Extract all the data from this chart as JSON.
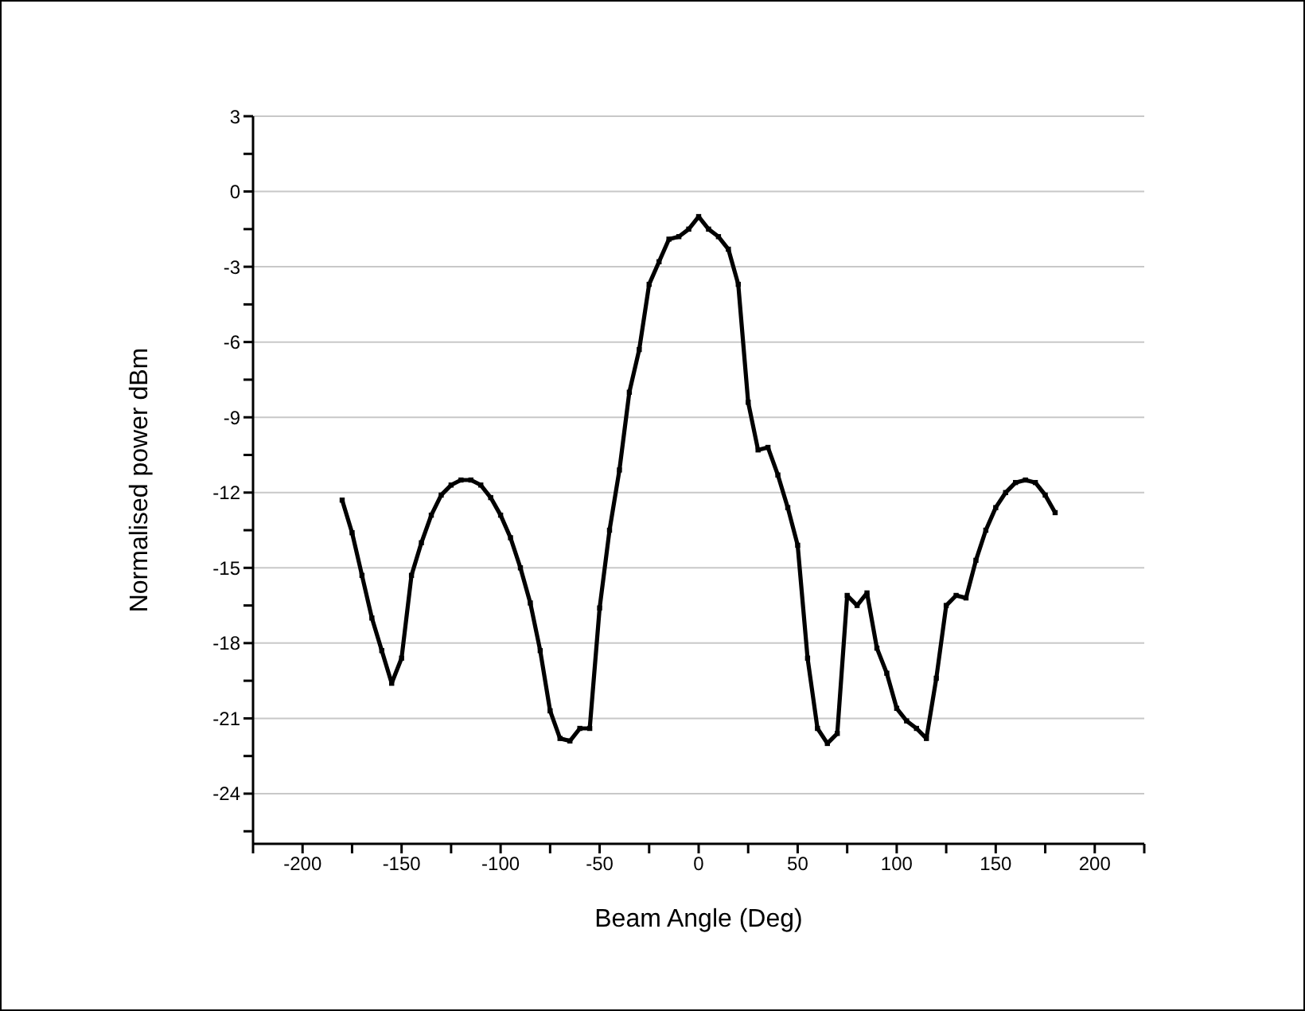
{
  "chart_data": {
    "type": "line",
    "xlabel": "Beam Angle (Deg)",
    "ylabel": "Normalised power dBm",
    "x": [
      -180,
      -175,
      -170,
      -165,
      -160,
      -155,
      -150,
      -145,
      -140,
      -135,
      -130,
      -125,
      -120,
      -115,
      -110,
      -105,
      -100,
      -95,
      -90,
      -85,
      -80,
      -75,
      -70,
      -65,
      -60,
      -55,
      -50,
      -45,
      -40,
      -35,
      -30,
      -25,
      -20,
      -15,
      -10,
      -5,
      0,
      5,
      10,
      15,
      20,
      25,
      30,
      35,
      40,
      45,
      50,
      55,
      60,
      65,
      70,
      75,
      80,
      85,
      90,
      95,
      100,
      105,
      110,
      115,
      120,
      125,
      130,
      135,
      140,
      145,
      150,
      155,
      160,
      165,
      170,
      175,
      180
    ],
    "series": [
      {
        "color": "#000000",
        "values": [
          -12.3,
          -13.6,
          -15.3,
          -17.0,
          -18.3,
          -19.6,
          -18.6,
          -15.3,
          -14.0,
          -12.9,
          -12.1,
          -11.7,
          -11.5,
          -11.5,
          -11.7,
          -12.2,
          -12.9,
          -13.8,
          -15.0,
          -16.4,
          -18.3,
          -20.7,
          -21.8,
          -21.9,
          -21.4,
          -21.4,
          -16.6,
          -13.5,
          -11.1,
          -8.0,
          -6.3,
          -3.7,
          -2.8,
          -1.9,
          -1.8,
          -1.5,
          -1.0,
          -1.5,
          -1.8,
          -2.3,
          -3.7,
          -8.4,
          -10.3,
          -10.2,
          -11.3,
          -12.6,
          -14.1,
          -18.6,
          -21.4,
          -22.0,
          -21.6,
          -16.1,
          -16.5,
          -16.0,
          -18.2,
          -19.2,
          -20.6,
          -21.1,
          -21.4,
          -21.8,
          -19.4,
          -16.5,
          -16.1,
          -16.2,
          -14.7,
          -13.5,
          -12.6,
          -12.0,
          -11.6,
          -11.5,
          -11.6,
          -12.1,
          -12.8
        ]
      }
    ],
    "xlim": [
      -225,
      225
    ],
    "xticks": [
      {
        "value": -225,
        "label": null
      },
      -200,
      {
        "value": -175,
        "label": null
      },
      -150,
      {
        "value": -125,
        "label": null
      },
      -100,
      {
        "value": -75,
        "label": null
      },
      -50,
      {
        "value": -25,
        "label": null
      },
      0,
      {
        "value": 25,
        "label": null
      },
      50,
      {
        "value": 75,
        "label": null
      },
      100,
      {
        "value": 125,
        "label": null
      },
      150,
      {
        "value": 175,
        "label": null
      },
      200,
      {
        "value": 225,
        "label": null
      }
    ],
    "ylim": [
      -26,
      3
    ],
    "yticks": [
      {
        "value": -25.5,
        "label": null
      },
      -24,
      {
        "value": -22.5,
        "label": null
      },
      -21,
      {
        "value": -19.5,
        "label": null
      },
      -18,
      {
        "value": -16.5,
        "label": null
      },
      -15,
      {
        "value": -13.5,
        "label": null
      },
      -12,
      {
        "value": -10.5,
        "label": null
      },
      -9,
      {
        "value": -7.5,
        "label": null
      },
      -6,
      {
        "value": -4.5,
        "label": null
      },
      -3,
      {
        "value": -1.5,
        "label": null
      },
      0,
      {
        "value": 1.5,
        "label": null
      },
      3
    ],
    "grid": "y",
    "marker": "square",
    "line_style": "solid"
  }
}
